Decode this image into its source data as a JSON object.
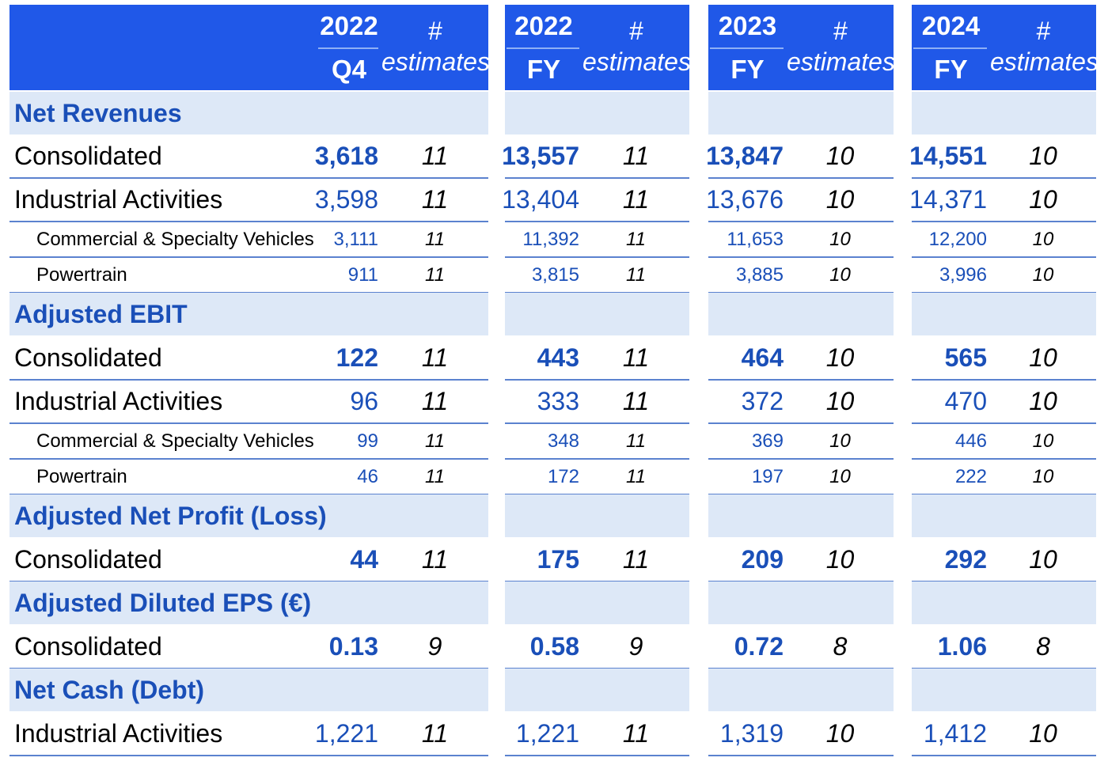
{
  "header": {
    "groups": [
      {
        "year": "2022",
        "period": "Q4",
        "hash": "#",
        "est": "estimates"
      },
      {
        "year": "2022",
        "period": "FY",
        "hash": "#",
        "est": "estimates"
      },
      {
        "year": "2023",
        "period": "FY",
        "hash": "#",
        "est": "estimates"
      },
      {
        "year": "2024",
        "period": "FY",
        "hash": "#",
        "est": "estimates"
      }
    ]
  },
  "rows": [
    {
      "kind": "section",
      "label": "Net Revenues"
    },
    {
      "kind": "main",
      "label": "Consolidated",
      "bold": true,
      "cells": [
        {
          "v": "3,618",
          "n": "11"
        },
        {
          "v": "13,557",
          "n": "11"
        },
        {
          "v": "13,847",
          "n": "10"
        },
        {
          "v": "14,551",
          "n": "10"
        }
      ]
    },
    {
      "kind": "main",
      "label": "Industrial Activities",
      "bold": false,
      "cells": [
        {
          "v": "3,598",
          "n": "11"
        },
        {
          "v": "13,404",
          "n": "11"
        },
        {
          "v": "13,676",
          "n": "10"
        },
        {
          "v": "14,371",
          "n": "10"
        }
      ]
    },
    {
      "kind": "sub",
      "label": "Commercial & Specialty Vehicles",
      "bold": false,
      "cells": [
        {
          "v": "3,111",
          "n": "11"
        },
        {
          "v": "11,392",
          "n": "11"
        },
        {
          "v": "11,653",
          "n": "10"
        },
        {
          "v": "12,200",
          "n": "10"
        }
      ]
    },
    {
      "kind": "sub",
      "label": "Powertrain",
      "bold": false,
      "cells": [
        {
          "v": "911",
          "n": "11"
        },
        {
          "v": "3,815",
          "n": "11"
        },
        {
          "v": "3,885",
          "n": "10"
        },
        {
          "v": "3,996",
          "n": "10"
        }
      ]
    },
    {
      "kind": "section",
      "label": "Adjusted EBIT"
    },
    {
      "kind": "main",
      "label": "Consolidated",
      "bold": true,
      "cells": [
        {
          "v": "122",
          "n": "11"
        },
        {
          "v": "443",
          "n": "11"
        },
        {
          "v": "464",
          "n": "10"
        },
        {
          "v": "565",
          "n": "10"
        }
      ]
    },
    {
      "kind": "main",
      "label": "Industrial Activities",
      "bold": false,
      "cells": [
        {
          "v": "96",
          "n": "11"
        },
        {
          "v": "333",
          "n": "11"
        },
        {
          "v": "372",
          "n": "10"
        },
        {
          "v": "470",
          "n": "10"
        }
      ]
    },
    {
      "kind": "sub",
      "label": "Commercial & Specialty Vehicles",
      "bold": false,
      "cells": [
        {
          "v": "99",
          "n": "11"
        },
        {
          "v": "348",
          "n": "11"
        },
        {
          "v": "369",
          "n": "10"
        },
        {
          "v": "446",
          "n": "10"
        }
      ]
    },
    {
      "kind": "sub",
      "label": "Powertrain",
      "bold": false,
      "cells": [
        {
          "v": "46",
          "n": "11"
        },
        {
          "v": "172",
          "n": "11"
        },
        {
          "v": "197",
          "n": "10"
        },
        {
          "v": "222",
          "n": "10"
        }
      ]
    },
    {
      "kind": "section",
      "label": "Adjusted Net Profit (Loss)"
    },
    {
      "kind": "main",
      "label": "Consolidated",
      "bold": true,
      "cells": [
        {
          "v": "44",
          "n": "11"
        },
        {
          "v": "175",
          "n": "11"
        },
        {
          "v": "209",
          "n": "10"
        },
        {
          "v": "292",
          "n": "10"
        }
      ]
    },
    {
      "kind": "section",
      "label": "Adjusted Diluted EPS (€)"
    },
    {
      "kind": "main",
      "label": "Consolidated",
      "bold": true,
      "cells": [
        {
          "v": "0.13",
          "n": "9"
        },
        {
          "v": "0.58",
          "n": "9"
        },
        {
          "v": "0.72",
          "n": "8"
        },
        {
          "v": "1.06",
          "n": "8"
        }
      ]
    },
    {
      "kind": "section",
      "label": "Net Cash (Debt)"
    },
    {
      "kind": "main",
      "label": "Industrial Activities",
      "bold": false,
      "cells": [
        {
          "v": "1,221",
          "n": "11"
        },
        {
          "v": "1,221",
          "n": "11"
        },
        {
          "v": "1,319",
          "n": "10"
        },
        {
          "v": "1,412",
          "n": "10"
        }
      ]
    }
  ]
}
